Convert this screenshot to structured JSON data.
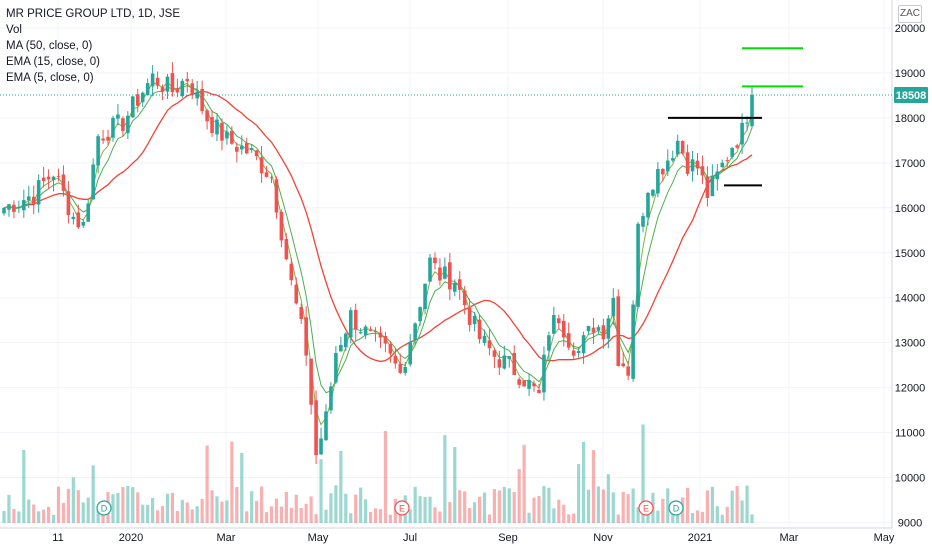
{
  "legend": {
    "title": "MR PRICE GROUP LTD, 1D, JSE",
    "vol": "Vol",
    "ma": "MA (50, close, 0)",
    "ema15": "EMA (15, close, 0)",
    "ema5": "EMA (5, close, 0)"
  },
  "currency": "ZAC",
  "chart_data": {
    "type": "candlestick",
    "x_ticks": [
      "11",
      "2020",
      "Mar",
      "May",
      "Jul",
      "Sep",
      "Nov",
      "2021",
      "Mar",
      "May"
    ],
    "y_ticks": [
      9000,
      10000,
      11000,
      12000,
      13000,
      14000,
      15000,
      16000,
      17000,
      18000,
      19000,
      20000
    ],
    "ylim": [
      8900,
      20400
    ],
    "last_price": 18508,
    "last_price_label": "18508",
    "markers": [
      {
        "label": "D",
        "at": "2020-01"
      },
      {
        "label": "E",
        "at": "2020-06"
      },
      {
        "label": "E",
        "at": "2020-11"
      },
      {
        "label": "D",
        "at": "2020-12"
      }
    ],
    "price_keypoints": [
      [
        0,
        16000
      ],
      [
        6,
        16300
      ],
      [
        10,
        16800
      ],
      [
        14,
        15800
      ],
      [
        16,
        15600
      ],
      [
        19,
        17600
      ],
      [
        24,
        17900
      ],
      [
        28,
        18600
      ],
      [
        30,
        18900
      ],
      [
        34,
        18600
      ],
      [
        37,
        18900
      ],
      [
        41,
        18000
      ],
      [
        45,
        17500
      ],
      [
        50,
        17200
      ],
      [
        54,
        16700
      ],
      [
        56,
        15500
      ],
      [
        58,
        14300
      ],
      [
        61,
        12800
      ],
      [
        63,
        10500
      ],
      [
        65,
        11300
      ],
      [
        67,
        12800
      ],
      [
        70,
        13600
      ],
      [
        74,
        13100
      ],
      [
        77,
        12800
      ],
      [
        80,
        12300
      ],
      [
        83,
        13500
      ],
      [
        86,
        14800
      ],
      [
        88,
        14500
      ],
      [
        91,
        14400
      ],
      [
        94,
        13600
      ],
      [
        96,
        13100
      ],
      [
        99,
        12700
      ],
      [
        102,
        12500
      ],
      [
        105,
        12200
      ],
      [
        108,
        11800
      ],
      [
        110,
        13300
      ],
      [
        112,
        13600
      ],
      [
        114,
        13100
      ],
      [
        116,
        12800
      ],
      [
        119,
        13400
      ],
      [
        121,
        13300
      ],
      [
        123,
        14000
      ],
      [
        124,
        12700
      ],
      [
        126,
        12400
      ],
      [
        128,
        15500
      ],
      [
        130,
        16500
      ],
      [
        132,
        16800
      ],
      [
        134,
        17100
      ],
      [
        136,
        17500
      ],
      [
        138,
        17000
      ],
      [
        140,
        16900
      ],
      [
        142,
        16300
      ],
      [
        144,
        16700
      ],
      [
        147,
        17400
      ],
      [
        149,
        17700
      ],
      [
        151,
        18508
      ]
    ],
    "annotations": {
      "resistance_line": 18000,
      "support_line": 16500,
      "target_lines": [
        18700,
        19550
      ]
    },
    "colors": {
      "up": "#26a69a",
      "down": "#ef5350",
      "ma50": "#f44336",
      "ema15": "#4caf50",
      "ema5": "#7cb342",
      "last_line": "#26a69a",
      "support_resistance": "#000000",
      "targets": "#00e000"
    }
  }
}
